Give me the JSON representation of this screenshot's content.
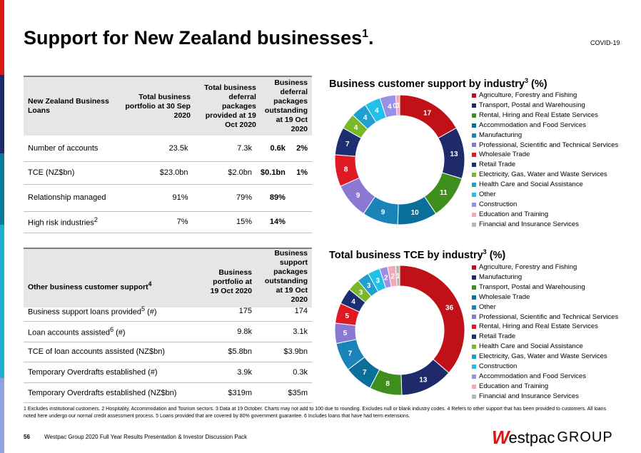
{
  "colors": {
    "stripe": [
      "#da1710",
      "#1f2a6b",
      "#0a7c9b",
      "#1fb0d8",
      "#8da4e0"
    ],
    "series": [
      "#c01018",
      "#1f2a6b",
      "#3f8f1f",
      "#0a6f9b",
      "#1a84b8",
      "#8a78d2",
      "#e01a24",
      "#1c2f72",
      "#78b82a",
      "#1fa0d0",
      "#20c0e8",
      "#9a90e6",
      "#f2a8b8",
      "#b8b8b8"
    ]
  },
  "page": {
    "title": "Support for New Zealand businesses",
    "title_sup": "1",
    "tag": "COVID-19"
  },
  "table1": {
    "headers": [
      "New Zealand Business Loans",
      "Total business portfolio at 30 Sep 2020",
      "Total business deferral packages provided at 19 Oct 2020",
      "Business deferral packages outstanding at 19 Oct 2020"
    ],
    "rows": [
      {
        "label": "Number of accounts",
        "label_sup": "",
        "a": "23.5k",
        "b": "7.3k",
        "c": "0.6k",
        "d": "2%"
      },
      {
        "label": "TCE (NZ$bn)",
        "label_sup": "",
        "a": "$23.0bn",
        "b": "$2.0bn",
        "c": "$0.1bn",
        "d": "1%"
      },
      {
        "label": "Relationship managed",
        "label_sup": "",
        "a": "91%",
        "b": "79%",
        "c": "89%",
        "d": ""
      },
      {
        "label": "High risk industries",
        "label_sup": "2",
        "a": "7%",
        "b": "15%",
        "c": "14%",
        "d": ""
      }
    ]
  },
  "table2": {
    "headers": [
      "Other business customer support",
      "Business portfolio at 19 Oct 2020",
      "Business support packages outstanding at 19 Oct 2020"
    ],
    "header_sup": "4",
    "rows": [
      {
        "label": "Business support loans provided",
        "label_sup": "5",
        "suffix": " (#)",
        "a": "175",
        "b": "174"
      },
      {
        "label": "Loan accounts assisted",
        "label_sup": "6",
        "suffix": " (#)",
        "a": "9.8k",
        "b": "3.1k"
      },
      {
        "label": "TCE of loan accounts assisted (NZ$bn)",
        "label_sup": "",
        "suffix": "",
        "a": "$5.8bn",
        "b": "$3.9bn"
      },
      {
        "label": "Temporary Overdrafts established (#)",
        "label_sup": "",
        "suffix": "",
        "a": "3.9k",
        "b": "0.3k"
      },
      {
        "label": "Temporary Overdrafts established (NZ$bn)",
        "label_sup": "",
        "suffix": "",
        "a": "$319m",
        "b": "$35m"
      }
    ]
  },
  "chart_data": [
    {
      "type": "pie",
      "title": "Business customer support by industry",
      "title_sup": "3",
      "title_suffix": " (%)",
      "categories": [
        "Agriculture, Forestry and Fishing",
        "Transport, Postal and Warehousing",
        "Rental, Hiring and Real Estate Services",
        "Accommodation and Food Services",
        "Manufacturing",
        "Professional, Scientific and Technical Services",
        "Wholesale Trade",
        "Retail Trade",
        "Electricity, Gas, Water and Waste Services",
        "Health Care and Social Assistance",
        "Other",
        "Construction",
        "Education and Training",
        "Financial and Insurance Services"
      ],
      "values": [
        17,
        13,
        11,
        10,
        9,
        9,
        8,
        7,
        4,
        4,
        4,
        4,
        1,
        0
      ],
      "labels": [
        "17",
        "13",
        "11",
        "10",
        "9",
        "9",
        "8",
        "7",
        "4",
        "4",
        "4",
        "4",
        "1",
        "0"
      ],
      "colors": [
        "#c01018",
        "#1f2a6b",
        "#3f8f1f",
        "#0a6f9b",
        "#1a84b8",
        "#8a78d2",
        "#e01a24",
        "#1c2f72",
        "#78b82a",
        "#1fa0d0",
        "#20c0e8",
        "#9a90e6",
        "#f2a8b8",
        "#b8b8b8"
      ]
    },
    {
      "type": "pie",
      "title": "Total business TCE by industry",
      "title_sup": "3",
      "title_suffix": " (%)",
      "categories": [
        "Agriculture, Forestry and Fishing",
        "Manufacturing",
        "Transport, Postal and Warehousing",
        "Wholesale Trade",
        "Other",
        "Professional, Scientific and Technical Services",
        "Rental, Hiring and Real Estate Services",
        "Retail Trade",
        "Health Care and Social Assistance",
        "Electricity, Gas, Water and Waste Services",
        "Construction",
        "Accommodation and Food Services",
        "Education and Training",
        "Financial and Insurance Services"
      ],
      "values": [
        36,
        13,
        8,
        7,
        7,
        5,
        5,
        4,
        3,
        3,
        3,
        2,
        2,
        1
      ],
      "labels": [
        "36",
        "13",
        "8",
        "7",
        "7",
        "5",
        "5",
        "4",
        "3",
        "3",
        "3",
        "2",
        "2",
        "1"
      ],
      "colors": [
        "#c01018",
        "#1f2a6b",
        "#3f8f1f",
        "#0a6f9b",
        "#1a84b8",
        "#8a78d2",
        "#e01a24",
        "#1c2f72",
        "#78b82a",
        "#1fa0d0",
        "#20c0e8",
        "#9a90e6",
        "#f2a8b8",
        "#b8b8b8"
      ]
    }
  ],
  "footnote": "1 Excludes institutional customers. 2 Hospitality, Accommodation and Tourism sectors. 3 Data at 19 October. Charts may not add to 100 due to rounding. Excludes null or blank industry codes. 4  Refers to other support that has been provided to customers. All loans noted here undergo our normal credit assessment process. 5 Loans provided that are covered by 80% government guarantee. 6 Includes loans that have had term extensions.",
  "footer": {
    "page_number": "56",
    "text": "Westpac Group 2020 Full Year Results Presentation & Investor Discussion Pack"
  },
  "logo": {
    "mark": "W",
    "word": "estpac",
    "group": "GROUP"
  }
}
